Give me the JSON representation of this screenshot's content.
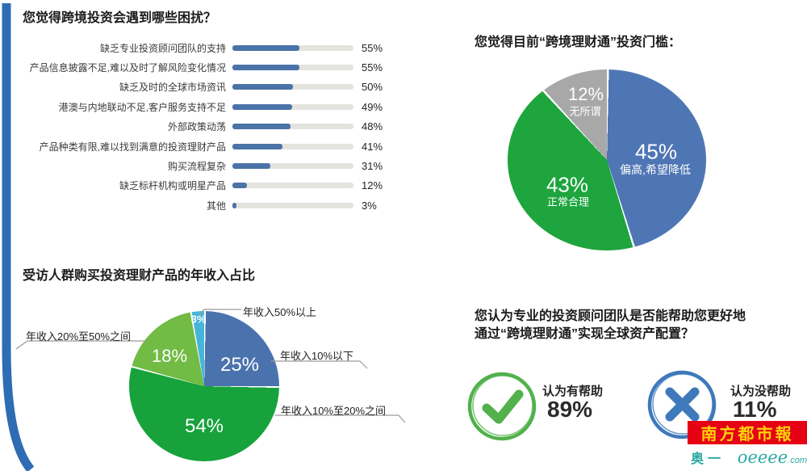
{
  "colors": {
    "bar_blue": "#4a73a8",
    "track_gray": "#e5e3de",
    "stripe_blue": "#2e6cb4",
    "check_green": "#52b14c",
    "cross_blue": "#3e79bb",
    "logo_red": "#e60014",
    "site_teal": "#2ba9a4"
  },
  "bar_section": {
    "title": "您觉得跨境投资会遇到哪些困扰？",
    "bars": [
      {
        "label": "缺乏专业投资顾问团队的支持",
        "value": 55,
        "pct": "55%"
      },
      {
        "label": "产品信息披露不足,难以及时了解风险变化情况",
        "value": 55,
        "pct": "55%"
      },
      {
        "label": "缺乏及时的全球市场资讯",
        "value": 50,
        "pct": "50%"
      },
      {
        "label": "港澳与内地联动不足,客户服务支持不足",
        "value": 49,
        "pct": "49%"
      },
      {
        "label": "外部政策动荡",
        "value": 48,
        "pct": "48%"
      },
      {
        "label": "产品种类有限,难以找到满意的投资理财产品",
        "value": 41,
        "pct": "41%"
      },
      {
        "label": "购买流程复杂",
        "value": 31,
        "pct": "31%"
      },
      {
        "label": "缺乏标杆机构或明星产品",
        "value": 12,
        "pct": "12%"
      },
      {
        "label": "其他",
        "value": 3,
        "pct": "3%"
      }
    ]
  },
  "threshold_pie": {
    "title": "您觉得目前“跨境理财通”投资门槛：",
    "slices": [
      {
        "label": "偏高,希望降低",
        "pct": "45%",
        "value": 45,
        "color": "#4f76b4"
      },
      {
        "label": "正常合理",
        "pct": "43%",
        "value": 43,
        "color": "#1ea53e"
      },
      {
        "label": "无所谓",
        "pct": "12%",
        "value": 12,
        "color": "#a9a8a8"
      }
    ]
  },
  "income_pie": {
    "title": "受访人群购买投资理财产品的年收入占比",
    "slices": [
      {
        "label": "年收入10%以下",
        "pct": "25%",
        "value": 25,
        "color": "#4a73ae"
      },
      {
        "label": "年收入10%至20%之间",
        "pct": "54%",
        "value": 54,
        "color": "#17a23c"
      },
      {
        "label": "年收入20%至50%之间",
        "pct": "18%",
        "value": 18,
        "color": "#72bb44"
      },
      {
        "label": "年收入50%以上",
        "pct": "3%",
        "value": 3,
        "color": "#45b5d9"
      }
    ]
  },
  "advisor_section": {
    "title_line1": "您认为专业的投资顾问团队是否能帮助您更好地",
    "title_line2": "通过“跨境理财通”实现全球资产配置？",
    "helpful": {
      "label": "认为有帮助",
      "pct": "89%"
    },
    "not_helpful": {
      "label": "认为没帮助",
      "pct": "11%"
    }
  },
  "branding": {
    "newspaper": "南方都市報",
    "site_name": "奥一网",
    "site_script": "oeeee",
    "site_tld": ".com"
  },
  "chart_data": [
    {
      "type": "bar",
      "orientation": "horizontal",
      "title": "您觉得跨境投资会遇到哪些困扰？",
      "categories": [
        "缺乏专业投资顾问团队的支持",
        "产品信息披露不足,难以及时了解风险变化情况",
        "缺乏及时的全球市场资讯",
        "港澳与内地联动不足,客户服务支持不足",
        "外部政策动荡",
        "产品种类有限,难以找到满意的投资理财产品",
        "购买流程复杂",
        "缺乏标杆机构或明星产品",
        "其他"
      ],
      "values": [
        55,
        55,
        50,
        49,
        48,
        41,
        31,
        12,
        3
      ],
      "unit": "%",
      "xlim": [
        0,
        100
      ],
      "bar_color": "#4a73a8",
      "grid": false,
      "legend": "none"
    },
    {
      "type": "pie",
      "title": "您觉得目前“跨境理财通”投资门槛：",
      "labels": [
        "偏高,希望降低",
        "正常合理",
        "无所谓"
      ],
      "values": [
        45,
        43,
        12
      ],
      "colors": [
        "#4f76b4",
        "#1ea53e",
        "#a9a8a8"
      ],
      "start_angle": "12-o-clock",
      "direction": "clockwise"
    },
    {
      "type": "pie",
      "title": "受访人群购买投资理财产品的年收入占比",
      "labels": [
        "年收入10%以下",
        "年收入10%至20%之间",
        "年收入20%至50%之间",
        "年收入50%以上"
      ],
      "values": [
        25,
        54,
        18,
        3
      ],
      "colors": [
        "#4a73ae",
        "#17a23c",
        "#72bb44",
        "#45b5d9"
      ],
      "start_angle": "12-o-clock",
      "direction": "clockwise"
    },
    {
      "type": "pie",
      "title": "您认为专业的投资顾问团队是否能帮助您更好地通过“跨境理财通”实现全球资产配置？",
      "labels": [
        "认为有帮助",
        "认为没帮助"
      ],
      "values": [
        89,
        11
      ],
      "colors": [
        "#52b14c",
        "#3e79bb"
      ]
    }
  ]
}
